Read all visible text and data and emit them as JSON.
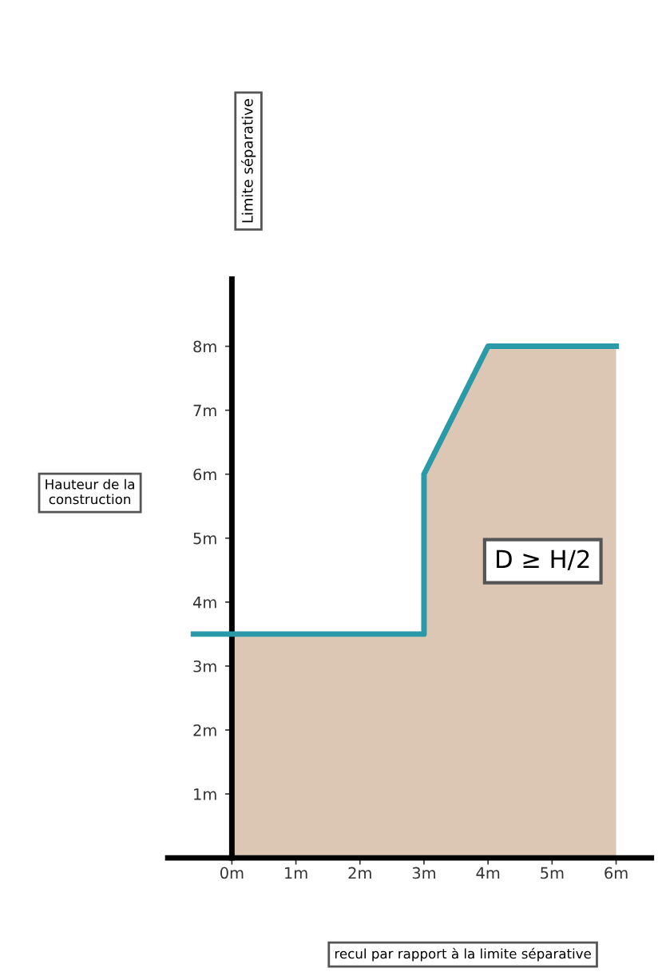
{
  "chart_data": {
    "type": "area",
    "annotations": [
      "Limite séparative",
      "Hauteur de la construction",
      "D ≥ H/2",
      "recul par rapport à la limite séparative"
    ],
    "series": [
      {
        "color": "#dcc6b4",
        "x": [
          0,
          3,
          3,
          4,
          6
        ],
        "values": [
          3.5,
          3.5,
          6,
          8,
          8
        ]
      },
      {
        "type": "line",
        "color": "#2a9aa8",
        "x": [
          -0.6,
          0,
          3,
          3,
          4,
          6
        ],
        "values": [
          3.5,
          3.5,
          3.5,
          6,
          8,
          8
        ]
      }
    ],
    "xlim": [
      -1.0,
      6.55
    ],
    "ylim": [
      0,
      9.05
    ],
    "xticks": [
      {
        "value": 0,
        "label": "0m"
      },
      {
        "value": 1,
        "label": "1m"
      },
      {
        "value": 2,
        "label": "2m"
      },
      {
        "value": 3,
        "label": "3m"
      },
      {
        "value": 4,
        "label": "4m"
      },
      {
        "value": 5,
        "label": "5m"
      },
      {
        "value": 6,
        "label": "6m"
      }
    ],
    "yticks": [
      {
        "value": 1,
        "label": "1m"
      },
      {
        "value": 2,
        "label": "2m"
      },
      {
        "value": 3,
        "label": "3m"
      },
      {
        "value": 4,
        "label": "4m"
      },
      {
        "value": 5,
        "label": "5m"
      },
      {
        "value": 6,
        "label": "6m"
      },
      {
        "value": 7,
        "label": "7m"
      },
      {
        "value": 8,
        "label": "8m"
      }
    ],
    "grid": false,
    "legend": false
  }
}
